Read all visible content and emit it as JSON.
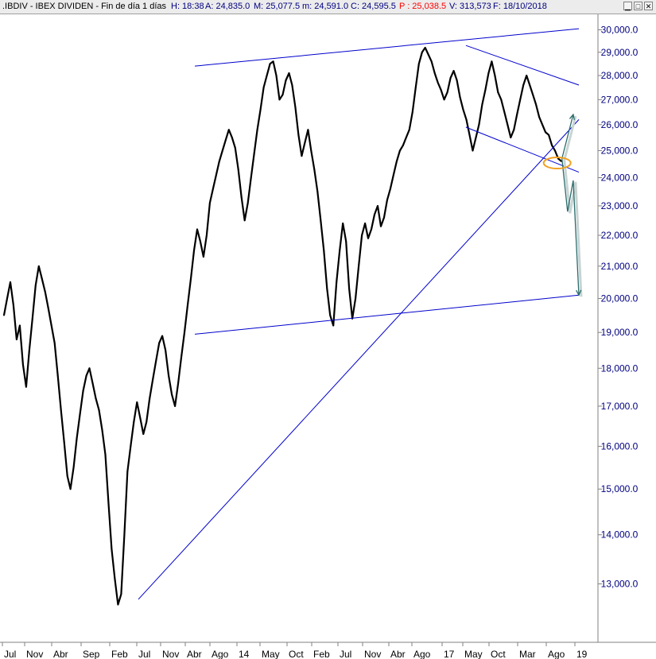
{
  "header": {
    "symbol": ".IBDIV - IBEX DIVIDEN - Fin de día 1 días",
    "high": "H: 18:38",
    "a": "A: 24,835.0",
    "m_max": "M: 25,077.5",
    "m_min": "m: 24,591.0",
    "c": "C: 24,595.5",
    "p": "P : 25,038.5",
    "v": "V: 313,573",
    "f": "F: 18/10/2018",
    "minimize_glyph": "▁",
    "restore_glyph": "□",
    "close_glyph": "✕",
    "accent_color": "#ff0000",
    "label_color": "#000080"
  },
  "chart_data": {
    "type": "line",
    "title": "",
    "y_scale": "log",
    "ylim": [
      12300,
      30500
    ],
    "yticks": [
      "30,000.0",
      "29,000.0",
      "28,000.0",
      "27,000.0",
      "26,000.0",
      "25,000.0",
      "24,000.0",
      "23,000.0",
      "22,000.0",
      "21,000.0",
      "20,000.0",
      "19,000.0",
      "18,000.0",
      "17,000.0",
      "16,000.0",
      "15,000.0",
      "14,000.0",
      "13,000.0"
    ],
    "ytick_values": [
      30000,
      29000,
      28000,
      27000,
      26000,
      25000,
      24000,
      23000,
      22000,
      21000,
      20000,
      19000,
      18000,
      17000,
      16000,
      15000,
      14000,
      13000
    ],
    "xticks": [
      "Jul",
      "Nov",
      "Abr",
      "Sep",
      "Feb",
      "Jul",
      "Nov",
      "Abr",
      "Ago",
      "14",
      "May",
      "Oct",
      "Feb",
      "Jul",
      "Nov",
      "Abr",
      "Ago",
      "17",
      "May",
      "Oct",
      "Mar",
      "Ago",
      "19"
    ],
    "grid": false,
    "legend": "none",
    "series_color": "#000000",
    "trendline_color": "#0000cc",
    "projection_color": "#2a6b6b",
    "highlight_color": "#f0a020",
    "series": [
      {
        "values": [
          19500,
          20000,
          20500,
          19800,
          18800,
          19200,
          18100,
          17500,
          18500,
          19400,
          20400,
          21000,
          20600,
          20200,
          19700,
          19200,
          18700,
          17800,
          16900,
          16100,
          15300,
          15000,
          15500,
          16200,
          16800,
          17400,
          17800,
          18000,
          17600,
          17200,
          16900,
          16400,
          15800,
          14700,
          13700,
          13100,
          12600,
          12800,
          14000,
          15400,
          16000,
          16600,
          17100,
          16700,
          16300,
          16600,
          17200,
          17700,
          18200,
          18700,
          18900,
          18500,
          17800,
          17300,
          17000,
          17600,
          18300,
          19000,
          19800,
          20600,
          21500,
          22200,
          21800,
          21300,
          22000,
          23100,
          23600,
          24100,
          24600,
          25000,
          25400,
          25800,
          25500,
          25100,
          24300,
          23300,
          22500,
          23100,
          24000,
          24900,
          25800,
          26600,
          27500,
          28000,
          28500,
          28600,
          28000,
          27000,
          27200,
          27800,
          28100,
          27600,
          26700,
          25600,
          24800,
          25300,
          25800,
          25000,
          24300,
          23500,
          22500,
          21500,
          20300,
          19500,
          19200,
          20500,
          21500,
          22400,
          21800,
          20300,
          19400,
          20000,
          21000,
          22000,
          22400,
          21900,
          22200,
          22700,
          23000,
          22300,
          22600,
          23200,
          23600,
          24100,
          24600,
          25000,
          25200,
          25500,
          25800,
          26500,
          27500,
          28500,
          29000,
          29200,
          28900,
          28600,
          28100,
          27700,
          27400,
          27000,
          27300,
          27900,
          28200,
          27800,
          27100,
          26600,
          26200,
          25600,
          25000,
          25500,
          26000,
          26800,
          27400,
          28100,
          28600,
          28000,
          27300,
          27000,
          26500,
          26000,
          25500,
          25800,
          26400,
          27000,
          27600,
          28000,
          27600,
          27200,
          26800,
          26300,
          26000,
          25700,
          25600,
          25200,
          25000,
          24700,
          24600
        ]
      }
    ],
    "trendlines": [
      {
        "name": "upper-channel-long",
        "from": [
          "2013-05",
          28400
        ],
        "to": [
          "2019-01",
          30050
        ]
      },
      {
        "name": "lower-channel-long",
        "from": [
          "2013-05",
          18950
        ],
        "to": [
          "2019-01",
          20100
        ]
      },
      {
        "name": "support-diagonal",
        "from": [
          "2012-07",
          12700
        ],
        "to": [
          "2019-01",
          26200
        ]
      },
      {
        "name": "descending-channel-upper",
        "from": [
          "2017-05",
          29300
        ],
        "to": [
          "2019-01",
          27600
        ]
      },
      {
        "name": "descending-channel-lower",
        "from": [
          "2017-05",
          25900
        ],
        "to": [
          "2019-01",
          24200
        ]
      }
    ],
    "projections": [
      {
        "name": "bullish-arrow",
        "points": [
          [
            24700,
            "2018-10"
          ],
          [
            26400,
            "2018-12"
          ]
        ]
      },
      {
        "name": "bearish-arrow",
        "points": [
          [
            24700,
            "2018-10"
          ],
          [
            22800,
            "2018-11"
          ],
          [
            23900,
            "2018-12"
          ],
          [
            20100,
            "2019-01"
          ]
        ]
      }
    ],
    "highlight": {
      "name": "breakout-circle",
      "value": 24595.5,
      "date": "18/10/2018"
    }
  }
}
